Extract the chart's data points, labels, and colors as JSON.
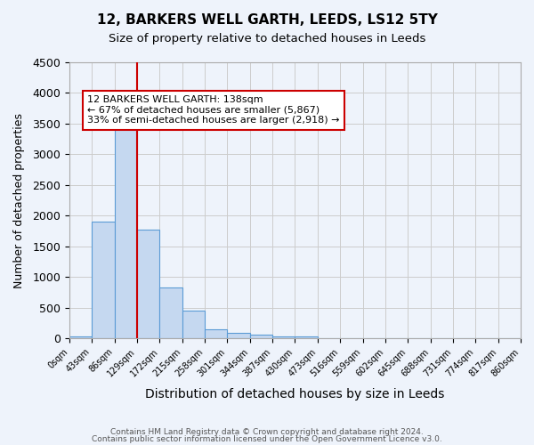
{
  "title": "12, BARKERS WELL GARTH, LEEDS, LS12 5TY",
  "subtitle": "Size of property relative to detached houses in Leeds",
  "xlabel": "Distribution of detached houses by size in Leeds",
  "ylabel": "Number of detached properties",
  "footnote1": "Contains HM Land Registry data © Crown copyright and database right 2024.",
  "footnote2": "Contains public sector information licensed under the Open Government Licence v3.0.",
  "bin_labels": [
    "0sqm",
    "43sqm",
    "86sqm",
    "129sqm",
    "172sqm",
    "215sqm",
    "258sqm",
    "301sqm",
    "344sqm",
    "387sqm",
    "430sqm",
    "473sqm",
    "516sqm",
    "559sqm",
    "602sqm",
    "645sqm",
    "688sqm",
    "731sqm",
    "774sqm",
    "817sqm",
    "860sqm"
  ],
  "bar_heights": [
    30,
    1900,
    3500,
    1780,
    830,
    450,
    155,
    90,
    55,
    35,
    30,
    0,
    0,
    0,
    0,
    0,
    0,
    0,
    0,
    0
  ],
  "bar_color": "#c5d8f0",
  "bar_edge_color": "#5b9bd5",
  "grid_color": "#cccccc",
  "bg_color": "#eef3fb",
  "red_line_x": 3,
  "red_line_color": "#cc0000",
  "annotation_text": "12 BARKERS WELL GARTH: 138sqm\n← 67% of detached houses are smaller (5,867)\n33% of semi-detached houses are larger (2,918) →",
  "annotation_box_color": "#ffffff",
  "annotation_box_edge_color": "#cc0000",
  "ylim": [
    0,
    4500
  ],
  "yticks": [
    0,
    500,
    1000,
    1500,
    2000,
    2500,
    3000,
    3500,
    4000,
    4500
  ]
}
